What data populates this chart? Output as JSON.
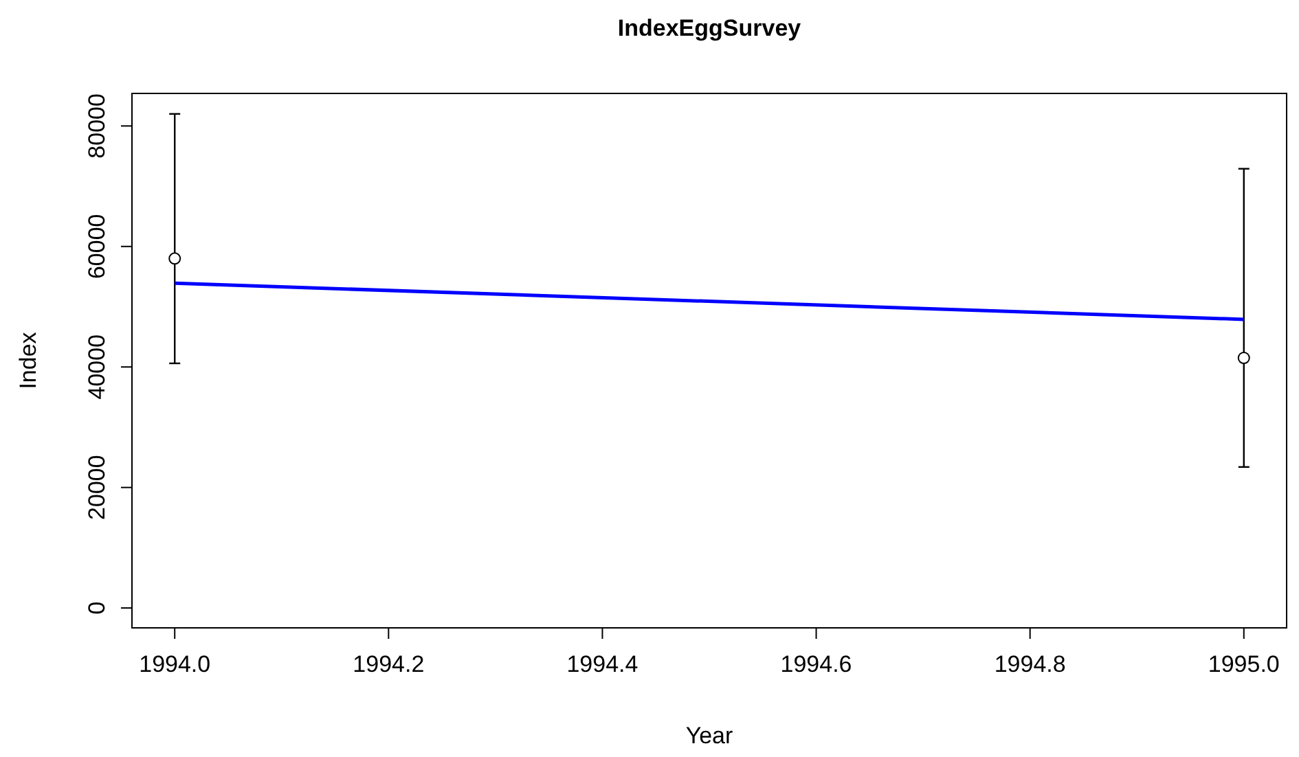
{
  "chart_data": {
    "type": "scatter",
    "title": "IndexEggSurvey",
    "xlabel": "Year",
    "ylabel": "Index",
    "x": [
      1994,
      1995
    ],
    "xlim": [
      1993.96,
      1995.04
    ],
    "xticks": [
      {
        "value": 1994,
        "label": "1994.0"
      },
      {
        "value": 1994.2,
        "label": "1994.2"
      },
      {
        "value": 1994.4,
        "label": "1994.4"
      },
      {
        "value": 1994.6,
        "label": "1994.6"
      },
      {
        "value": 1994.8,
        "label": "1994.8"
      },
      {
        "value": 1995,
        "label": "1995.0"
      }
    ],
    "ylim": [
      -3300,
      85400
    ],
    "yticks": [
      0,
      20000,
      40000,
      60000,
      80000
    ],
    "grid": false,
    "series": [
      {
        "marker": "circle",
        "color": "#000000",
        "values": [
          58000,
          41500
        ],
        "errors": [
          [
            40600,
            82000
          ],
          [
            23400,
            72900
          ]
        ]
      },
      {
        "type": "line",
        "color": "#0000ff",
        "x": [
          1994,
          1995
        ],
        "values": [
          53900,
          47900
        ]
      }
    ]
  }
}
